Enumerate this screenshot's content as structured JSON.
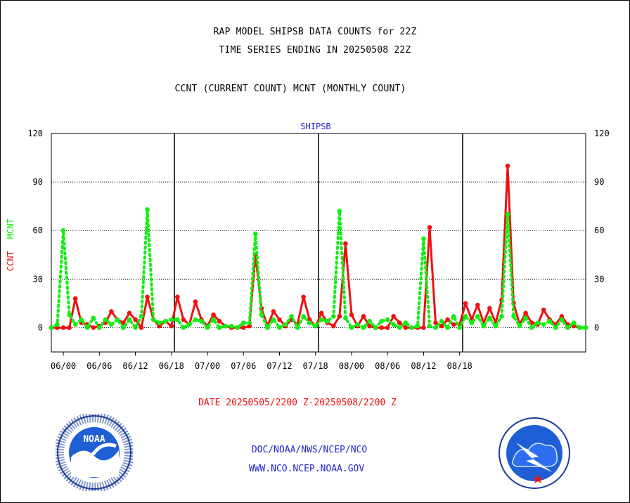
{
  "titles": {
    "line1": "RAP MODEL SHIPSB DATA COUNTS for 22Z",
    "line2": "TIME SERIES ENDING IN 20250508 22Z",
    "line3": "CCNT (CURRENT COUNT) MCNT (MONTHLY COUNT)"
  },
  "date_range": "DATE 20250505/2200 Z-20250508/2200 Z",
  "footer": {
    "line1": "DOC/NOAA/NWS/NCEP/NCO",
    "line2": "WWW.NCO.NCEP.NOAA.GOV"
  },
  "logos": {
    "left": "NOAA",
    "left_ring": "NATIONAL OCEANIC AND ATMOSPHERIC ADMINISTRATION · U.S. DEPARTMENT OF COMMERCE",
    "right_ring": "NATIONAL WEATHER SERVICE"
  },
  "colors": {
    "ccnt": "#ee1111",
    "mcnt": "#11ee11",
    "panel_title": "#2222cc"
  },
  "chart_data": {
    "type": "line",
    "title": "SHIPSB",
    "ylabel_ccnt": "CCNT",
    "ylabel_mcnt": "MCNT",
    "ylim": [
      -15,
      120
    ],
    "yticks": [
      0,
      30,
      60,
      90,
      120
    ],
    "x_tick_labels": [
      "06/00",
      "06/06",
      "06/12",
      "06/18",
      "07/00",
      "07/06",
      "07/12",
      "07/18",
      "08/00",
      "08/06",
      "08/12",
      "08/18"
    ],
    "day_dividers": [
      "06/18",
      "07/18",
      "08/18"
    ],
    "x_start": "05/22",
    "grid": true,
    "series": [
      {
        "name": "CCNT",
        "color": "#ee1111",
        "style": "solid",
        "values": [
          0,
          0,
          0,
          0,
          18,
          3,
          2,
          0,
          1,
          3,
          10,
          5,
          3,
          9,
          5,
          0,
          19,
          5,
          1,
          4,
          1,
          19,
          5,
          2,
          16,
          5,
          1,
          8,
          4,
          1,
          0,
          0,
          0,
          1,
          45,
          12,
          1,
          10,
          5,
          1,
          5,
          2,
          19,
          5,
          1,
          9,
          3,
          1,
          7,
          52,
          8,
          1,
          7,
          1,
          0,
          0,
          0,
          7,
          3,
          0,
          0,
          0,
          0,
          62,
          3,
          1,
          5,
          2,
          2,
          15,
          5,
          14,
          3,
          12,
          3,
          17,
          100,
          15,
          2,
          9,
          3,
          2,
          11,
          5,
          2,
          7,
          2,
          1,
          0,
          0
        ]
      },
      {
        "name": "MCNT",
        "color": "#11ee11",
        "style": "dotted",
        "values": [
          0,
          2,
          60,
          8,
          2,
          5,
          0,
          6,
          0,
          5,
          2,
          5,
          0,
          5,
          0,
          7,
          73,
          5,
          3,
          4,
          5,
          5,
          0,
          2,
          5,
          4,
          0,
          5,
          0,
          1,
          1,
          0,
          3,
          3,
          58,
          8,
          0,
          5,
          0,
          2,
          7,
          0,
          7,
          3,
          1,
          5,
          4,
          7,
          72,
          6,
          0,
          2,
          0,
          4,
          0,
          4,
          5,
          2,
          0,
          3,
          0,
          1,
          55,
          1,
          0,
          4,
          0,
          7,
          0,
          7,
          3,
          7,
          1,
          6,
          1,
          7,
          70,
          7,
          1,
          6,
          0,
          3,
          2,
          4,
          0,
          5,
          0,
          3,
          0,
          0
        ]
      }
    ]
  }
}
